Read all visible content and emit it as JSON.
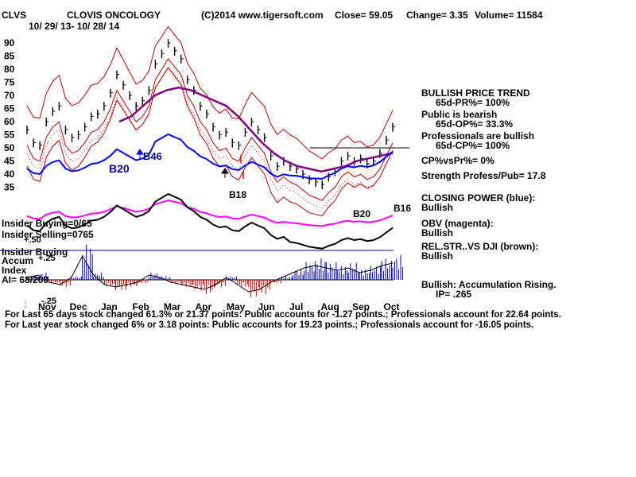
{
  "header": {
    "ticker": "CLVS",
    "company": "CLOVIS ONCOLOGY",
    "copyright": "(C)2014 www.tigersoft.com",
    "close": "Close=  59.05",
    "change": "Change= 3.35",
    "volume": "Volume= 11584",
    "date_range": "10/ 29/ 13- 10/ 28/ 14"
  },
  "left_labels": {
    "insider_buying": "Insider Buying=0/65",
    "insider_selling": "Insider Selling=0765",
    "plus50": "+.50",
    "ib_accum": "Insider Buying",
    "accum": "Accum",
    "plus25": "+.25",
    "index": "Index",
    "ai": "AI= 68/200",
    "minus25": "-.25"
  },
  "signals": {
    "b46": "B46",
    "b20a": "B20",
    "b18": "B18",
    "b20b": "B20",
    "b16": "B16"
  },
  "sidebar": {
    "trend_title": "BULLISH PRICE TREND",
    "pr": "65d-PR%= 100%",
    "public_line": "Public is bearish",
    "op": "65d-OP%= 33.3%",
    "pros_line": "Professionals are bullish",
    "cp": "65d-CP%= 100%",
    "cpvspr": "CP%vsPr%=  0%",
    "strength": "Strength Profess/Pub= 17.8",
    "cp_title": "CLOSING POWER (blue):",
    "cp_val": "Bullish",
    "obv_title": "OBV (magenta):",
    "obv_val": "Bullish",
    "rs_title": "REL.STR..VS DJI (brown):",
    "rs_val": "Bullish",
    "accum_title": "Bullish: Accumulation Rising.",
    "ip": "IP=  .265"
  },
  "footer": {
    "line1": "For Last 65 days stock changed  61.3% or  21.37 points:  Public accounts for -1.27 points.;  Professionals account for  22.64 points.",
    "line2": "For Last year stock changed  6% or  3.18 points:  Public accounts for  19.23 points.;  Professionals account for -16.05 points."
  },
  "colors": {
    "price": "#000000",
    "band": "#c00000",
    "ma": "#800080",
    "closing_power": "#0000ff",
    "obv": "#ff00ff",
    "accum_pos": "#0000cc",
    "accum_neg": "#cc0000",
    "up_arrow": "#0000ff",
    "down_arrow": "#ff0000"
  },
  "chart_data": {
    "type": "line",
    "title": "CLOVIS ONCOLOGY",
    "y_ticks": [
      90,
      85,
      80,
      75,
      70,
      65,
      60,
      55,
      50,
      45,
      40,
      35
    ],
    "ylim": [
      35,
      90
    ],
    "months": [
      "Nov",
      "Dec",
      "Jan",
      "Feb",
      "Mar",
      "Apr",
      "May",
      "Jun",
      "Jul",
      "Aug",
      "Sep",
      "Oct"
    ],
    "price": [
      57,
      52,
      51,
      60,
      64,
      66,
      57,
      54,
      55,
      58,
      62,
      63,
      66,
      71,
      78,
      74,
      70,
      66,
      68,
      72,
      82,
      86,
      90,
      87,
      84,
      76,
      72,
      66,
      63,
      58,
      55,
      56,
      52,
      51,
      56,
      60,
      57,
      54,
      47,
      43,
      45,
      43,
      42,
      40,
      38,
      37,
      36,
      39,
      41,
      45,
      47,
      45,
      46,
      44,
      45,
      48,
      53,
      58
    ],
    "ma_long": [
      60,
      62,
      66,
      70,
      72,
      73,
      72,
      70,
      68,
      66,
      62,
      57,
      52,
      48,
      45,
      43,
      42,
      41,
      42,
      43,
      45,
      46,
      47,
      48
    ],
    "closing_power_dir": "Bullish",
    "obv_dir": "Bullish",
    "rel_str_dir": "Bullish",
    "accumulation": [
      0.05,
      0.1,
      -0.05,
      -0.1,
      0.05,
      0.5,
      0.1,
      -0.1,
      -0.15,
      -0.1,
      -0.05,
      0.1,
      0.05,
      -0.05,
      -0.1,
      -0.15,
      -0.2,
      -0.1,
      0.05,
      -0.1,
      -0.25,
      -0.2,
      -0.05,
      0.05,
      0.15,
      0.25,
      0.3,
      0.25,
      0.2,
      0.25,
      0.15,
      0.2,
      0.3,
      0.35
    ],
    "horizontal_level": 50
  }
}
